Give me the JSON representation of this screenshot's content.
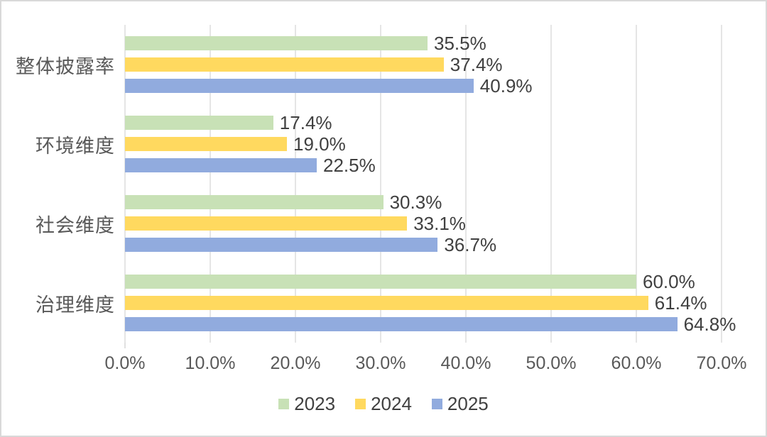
{
  "chart_data": {
    "type": "bar",
    "orientation": "horizontal",
    "title": "",
    "xlabel": "",
    "ylabel": "",
    "categories": [
      "整体披露率",
      "环境维度",
      "社会维度",
      "治理维度"
    ],
    "series": [
      {
        "name": "2023",
        "color": "#C8E1B6",
        "values": [
          35.5,
          17.4,
          30.3,
          60.0
        ],
        "labels": [
          "35.5%",
          "17.4%",
          "30.3%",
          "60.0%"
        ]
      },
      {
        "name": "2024",
        "color": "#FFD95F",
        "values": [
          37.4,
          19.0,
          33.1,
          61.4
        ],
        "labels": [
          "37.4%",
          "19.0%",
          "33.1%",
          "61.4%"
        ]
      },
      {
        "name": "2025",
        "color": "#91ABDE",
        "values": [
          40.9,
          22.5,
          36.7,
          64.8
        ],
        "labels": [
          "40.9%",
          "22.5%",
          "36.7%",
          "64.8%"
        ]
      }
    ],
    "xlim": [
      0,
      70
    ],
    "x_ticks": [
      "0.0%",
      "10.0%",
      "20.0%",
      "30.0%",
      "40.0%",
      "50.0%",
      "60.0%",
      "70.0%"
    ],
    "x_tick_values": [
      0,
      10,
      20,
      30,
      40,
      50,
      60,
      70
    ],
    "grid": true,
    "gridline_color": "#E5E5E5",
    "data_label_color": "#404040",
    "axis_label_color": "#595959",
    "legend_position": "bottom",
    "legend": [
      {
        "label": "2023",
        "color": "#C8E1B6"
      },
      {
        "label": "2024",
        "color": "#FFD95F"
      },
      {
        "label": "2025",
        "color": "#91ABDE"
      }
    ]
  }
}
